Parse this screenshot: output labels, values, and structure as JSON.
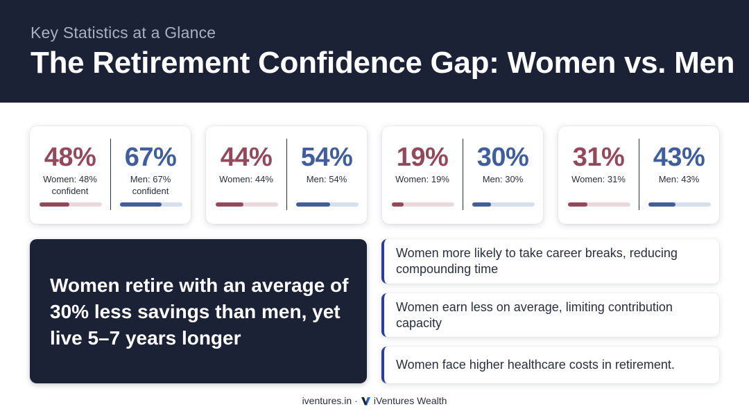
{
  "header": {
    "kicker": "Key Statistics at a Glance",
    "title": "The Retirement Confidence Gap: Women vs. Men"
  },
  "stats": [
    {
      "women": {
        "value": "48%",
        "label": "Women: 48% confident",
        "fill": 0.48
      },
      "men": {
        "value": "67%",
        "label": "Men: 67% confident",
        "fill": 0.67
      }
    },
    {
      "women": {
        "value": "44%",
        "label": "Women: 44%",
        "fill": 0.44
      },
      "men": {
        "value": "54%",
        "label": "Men: 54%",
        "fill": 0.54
      }
    },
    {
      "women": {
        "value": "19%",
        "label": "Women: 19%",
        "fill": 0.19
      },
      "men": {
        "value": "30%",
        "label": "Men: 30%",
        "fill": 0.3
      }
    },
    {
      "women": {
        "value": "31%",
        "label": "Women: 31%",
        "fill": 0.31
      },
      "men": {
        "value": "43%",
        "label": "Men: 43%",
        "fill": 0.43
      }
    }
  ],
  "highlight": {
    "text": "Women retire with an average of 30% less savings than men, yet live 5–7 years longer"
  },
  "facts": [
    "Women more likely to take career breaks, reducing compounding time",
    "Women earn less on average, limiting contribution capacity",
    "Women face higher healthcare costs in retirement."
  ],
  "footer": {
    "site": "iventures.in",
    "separator": "·",
    "brand": "iVentures Wealth",
    "logo_icon": "v-logo-icon"
  },
  "colors": {
    "navy": "#1b2236",
    "women_accent": "#93495c",
    "men_accent": "#3f5e9a",
    "fact_border": "#2a3f96"
  }
}
